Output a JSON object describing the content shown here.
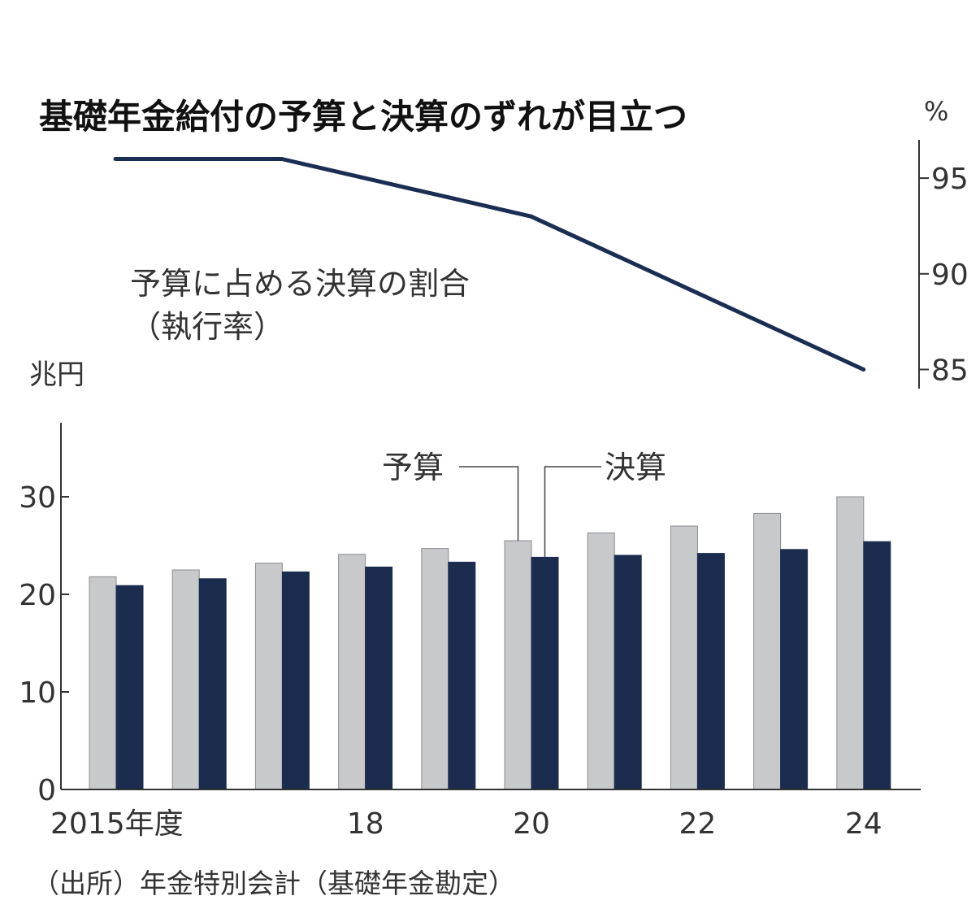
{
  "chart_data": [
    {
      "type": "line",
      "title": "基礎年金給付の予算と決算のずれが目立つ",
      "series_label_line1": "予算に占める決算の割合",
      "series_label_line2": "（執行率）",
      "unit": "%",
      "x": [
        2015,
        2016,
        2017,
        2018,
        2019,
        2020,
        2021,
        2022,
        2023,
        2024
      ],
      "values": [
        96,
        96,
        96,
        95,
        94,
        93,
        91,
        89,
        87,
        85
      ],
      "yticks": [
        85,
        90,
        95
      ],
      "ylim": [
        84,
        97
      ],
      "color": "#1a2d52"
    },
    {
      "type": "bar",
      "unit": "兆円",
      "categories": [
        2015,
        2016,
        2017,
        2018,
        2019,
        2020,
        2021,
        2022,
        2023,
        2024
      ],
      "xtick_labels": [
        "2015年度",
        "",
        "",
        "18",
        "",
        "20",
        "",
        "22",
        "",
        "24"
      ],
      "series": [
        {
          "name": "予算",
          "values": [
            21.8,
            22.5,
            23.2,
            24.1,
            24.7,
            25.5,
            26.3,
            27.0,
            28.3,
            30.0
          ],
          "color": "#c8c9cb"
        },
        {
          "name": "決算",
          "values": [
            20.9,
            21.6,
            22.3,
            22.8,
            23.3,
            23.8,
            24.0,
            24.2,
            24.6,
            25.4
          ],
          "color": "#1b2c4f"
        }
      ],
      "yticks": [
        0,
        10,
        20,
        30
      ],
      "ylim": [
        0,
        37
      ]
    }
  ],
  "source": "（出所）年金特別会計（基礎年金勘定）"
}
